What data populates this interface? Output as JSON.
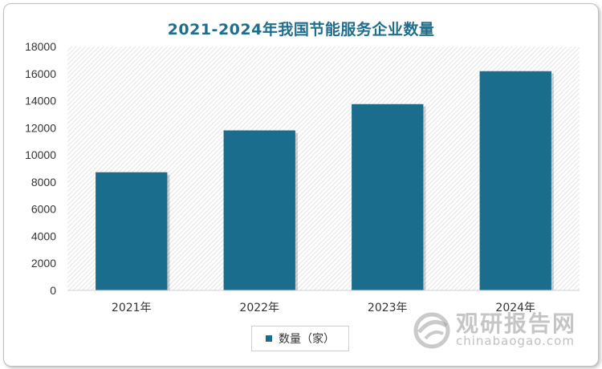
{
  "chart_data": {
    "type": "bar",
    "title": "2021-2024年我国节能服务企业数量",
    "categories": [
      "2021年",
      "2022年",
      "2023年",
      "2024年"
    ],
    "series": [
      {
        "name": "数量（家）",
        "values": [
          8720,
          11810,
          13750,
          16180
        ]
      }
    ],
    "ylim": [
      0,
      18000
    ],
    "yticks": [
      0,
      2000,
      4000,
      6000,
      8000,
      10000,
      12000,
      14000,
      16000,
      18000
    ],
    "xlabel": "",
    "ylabel": "",
    "grid": false,
    "legend_position": "bottom",
    "bar_color": "#1b6d8e"
  },
  "watermark": {
    "brand": "观研报告网",
    "url": "chinabaogao.com"
  }
}
